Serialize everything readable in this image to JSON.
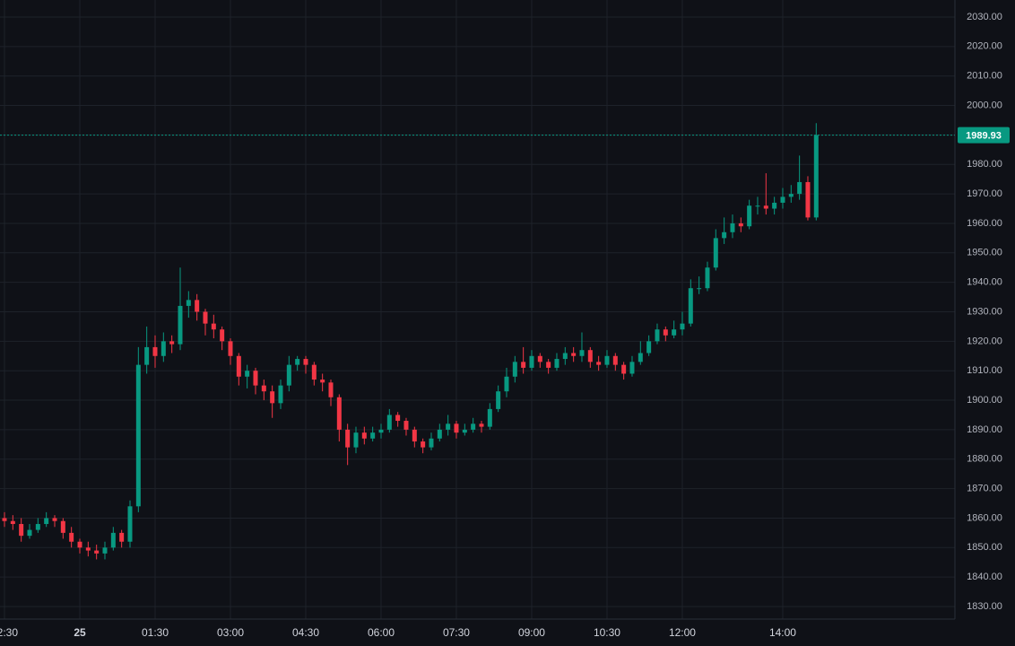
{
  "chart_data": {
    "type": "candlestick",
    "categories": [
      "22:30",
      "22:40",
      "22:50",
      "23:00",
      "23:10",
      "23:20",
      "23:30",
      "23:40",
      "23:50",
      "00:00",
      "00:10",
      "00:20",
      "00:30",
      "00:40",
      "00:50",
      "01:00",
      "01:10",
      "01:20",
      "01:30",
      "01:40",
      "01:50",
      "02:00",
      "02:10",
      "02:20",
      "02:30",
      "02:40",
      "02:50",
      "03:00",
      "03:10",
      "03:20",
      "03:30",
      "03:40",
      "03:50",
      "04:00",
      "04:10",
      "04:20",
      "04:30",
      "04:40",
      "04:50",
      "05:00",
      "05:10",
      "05:20",
      "05:30",
      "05:40",
      "05:50",
      "06:00",
      "06:10",
      "06:20",
      "06:30",
      "06:40",
      "06:50",
      "07:00",
      "07:10",
      "07:20",
      "07:30",
      "07:40",
      "07:50",
      "08:00",
      "08:10",
      "08:20",
      "08:30",
      "08:40",
      "08:50",
      "09:00",
      "09:10",
      "09:20",
      "09:30",
      "09:40",
      "09:50",
      "10:00",
      "10:10",
      "10:20",
      "10:30",
      "10:40",
      "10:50",
      "11:00",
      "11:10",
      "11:20",
      "11:30",
      "11:40",
      "11:50",
      "12:00",
      "12:10",
      "12:20",
      "12:30",
      "12:40",
      "12:50",
      "13:00",
      "13:10",
      "13:20",
      "13:30",
      "13:40",
      "13:50",
      "14:00",
      "14:10",
      "14:20",
      "14:30",
      "14:40"
    ],
    "open": [
      1860,
      1859,
      1858,
      1854,
      1856,
      1858,
      1860,
      1859,
      1855,
      1852,
      1850,
      1849,
      1848,
      1850,
      1855,
      1852,
      1864,
      1912,
      1918,
      1915,
      1920,
      1919,
      1932,
      1934,
      1930,
      1926,
      1924,
      1920,
      1915,
      1908,
      1910,
      1905,
      1903,
      1899,
      1905,
      1912,
      1914,
      1912,
      1907,
      1906,
      1901,
      1890,
      1884,
      1889,
      1887,
      1889,
      1890,
      1895,
      1893,
      1890,
      1886,
      1884,
      1887,
      1890,
      1892,
      1889,
      1890,
      1892,
      1891,
      1897,
      1903,
      1908,
      1913,
      1911,
      1915,
      1913,
      1911,
      1914,
      1916,
      1915,
      1917,
      1913,
      1912,
      1915,
      1912,
      1909,
      1913,
      1916,
      1920,
      1924,
      1922,
      1924,
      1926,
      1938,
      1938,
      1945,
      1955,
      1957,
      1960,
      1959,
      1966,
      1966,
      1965,
      1967,
      1969,
      1970,
      1974,
      1962
    ],
    "high": [
      1862,
      1861,
      1860,
      1858,
      1860,
      1862,
      1861,
      1860,
      1857,
      1853,
      1852,
      1851,
      1852,
      1857,
      1856,
      1866,
      1918,
      1925,
      1922,
      1923,
      1922,
      1945,
      1937,
      1936,
      1931,
      1929,
      1925,
      1921,
      1916,
      1912,
      1911,
      1907,
      1905,
      1907,
      1915,
      1915,
      1915,
      1913,
      1909,
      1907,
      1902,
      1892,
      1891,
      1891,
      1891,
      1892,
      1897,
      1896,
      1894,
      1891,
      1887,
      1889,
      1892,
      1895,
      1893,
      1892,
      1894,
      1893,
      1899,
      1905,
      1911,
      1915,
      1918,
      1917,
      1916,
      1914,
      1916,
      1918,
      1918,
      1923,
      1918,
      1915,
      1917,
      1916,
      1913,
      1915,
      1920,
      1922,
      1926,
      1925,
      1927,
      1930,
      1941,
      1942,
      1947,
      1958,
      1962,
      1963,
      1962,
      1968,
      1969,
      1977,
      1969,
      1972,
      1973,
      1983,
      1976,
      1994
    ],
    "low": [
      1857,
      1856,
      1852,
      1853,
      1855,
      1857,
      1857,
      1853,
      1850,
      1848,
      1847,
      1846,
      1846,
      1849,
      1850,
      1850,
      1862,
      1909,
      1911,
      1913,
      1916,
      1917,
      1928,
      1927,
      1922,
      1921,
      1917,
      1912,
      1905,
      1904,
      1902,
      1900,
      1894,
      1897,
      1903,
      1910,
      1909,
      1905,
      1903,
      1898,
      1886,
      1878,
      1882,
      1885,
      1886,
      1887,
      1889,
      1891,
      1888,
      1884,
      1882,
      1883,
      1886,
      1888,
      1887,
      1888,
      1889,
      1889,
      1890,
      1896,
      1901,
      1906,
      1909,
      1910,
      1911,
      1909,
      1910,
      1912,
      1913,
      1913,
      1911,
      1910,
      1911,
      1910,
      1907,
      1908,
      1912,
      1915,
      1919,
      1920,
      1921,
      1922,
      1925,
      1936,
      1937,
      1944,
      1953,
      1955,
      1957,
      1958,
      1963,
      1963,
      1963,
      1965,
      1967,
      1968,
      1961,
      1961
    ],
    "close": [
      1859,
      1858,
      1854,
      1856,
      1858,
      1860,
      1859,
      1855,
      1852,
      1850,
      1849,
      1848,
      1850,
      1855,
      1852,
      1864,
      1912,
      1918,
      1915,
      1920,
      1919,
      1932,
      1934,
      1930,
      1926,
      1924,
      1920,
      1915,
      1908,
      1910,
      1905,
      1903,
      1899,
      1905,
      1912,
      1914,
      1912,
      1907,
      1906,
      1901,
      1890,
      1884,
      1889,
      1887,
      1889,
      1890,
      1895,
      1893,
      1890,
      1886,
      1884,
      1887,
      1890,
      1892,
      1889,
      1890,
      1892,
      1891,
      1897,
      1903,
      1908,
      1913,
      1911,
      1915,
      1913,
      1911,
      1914,
      1916,
      1915,
      1917,
      1913,
      1912,
      1915,
      1912,
      1909,
      1913,
      1916,
      1920,
      1924,
      1922,
      1924,
      1926,
      1938,
      1938,
      1945,
      1955,
      1957,
      1960,
      1959,
      1966,
      1966,
      1965,
      1967,
      1969,
      1970,
      1974,
      1962,
      1989.93
    ],
    "up_color": "#089981",
    "down_color": "#f23645",
    "ylim": [
      1825.74,
      2035.78
    ],
    "yticks": [
      {
        "value": 1830,
        "label": "1830.00"
      },
      {
        "value": 1840,
        "label": "1840.00"
      },
      {
        "value": 1850,
        "label": "1850.00"
      },
      {
        "value": 1860,
        "label": "1860.00"
      },
      {
        "value": 1870,
        "label": "1870.00"
      },
      {
        "value": 1880,
        "label": "1880.00"
      },
      {
        "value": 1890,
        "label": "1890.00"
      },
      {
        "value": 1900,
        "label": "1900.00"
      },
      {
        "value": 1910,
        "label": "1910.00"
      },
      {
        "value": 1920,
        "label": "1920.00"
      },
      {
        "value": 1930,
        "label": "1930.00"
      },
      {
        "value": 1940,
        "label": "1940.00"
      },
      {
        "value": 1950,
        "label": "1950.00"
      },
      {
        "value": 1960,
        "label": "1960.00"
      },
      {
        "value": 1970,
        "label": "1970.00"
      },
      {
        "value": 1980,
        "label": "1980.00"
      },
      {
        "value": 1990,
        "label": "1990.00"
      },
      {
        "value": 2000,
        "label": "2000.00"
      },
      {
        "value": 2010,
        "label": "2010.00"
      },
      {
        "value": 2020,
        "label": "2020.00"
      },
      {
        "value": 2030,
        "label": "2030.00"
      }
    ],
    "xticks": [
      "22:30",
      {
        "value": "00:00",
        "label": "25"
      },
      "01:30",
      "03:00",
      "04:30",
      "06:00",
      "07:30",
      "09:00",
      "10:30",
      "12:00",
      "14:00"
    ],
    "grid": true
  }
}
